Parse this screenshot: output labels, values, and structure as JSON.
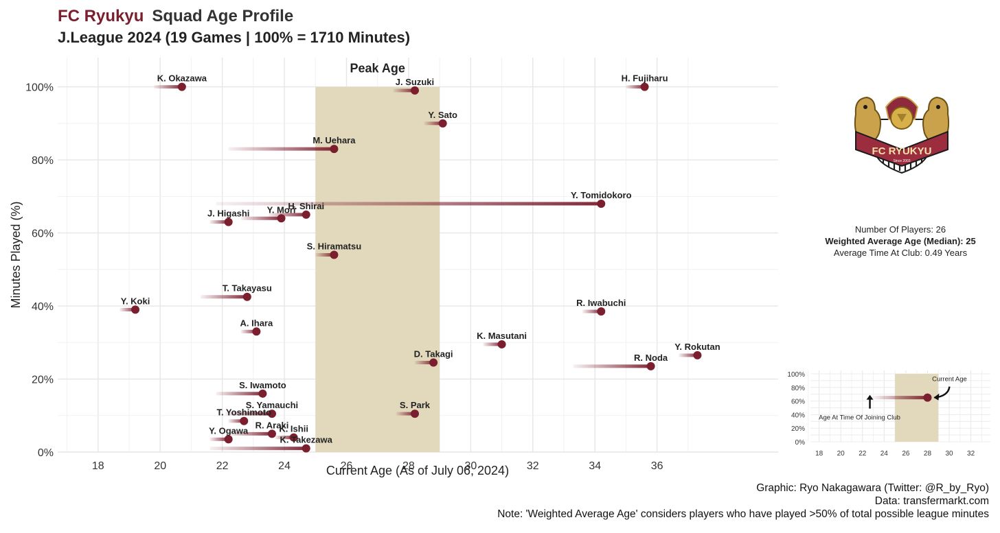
{
  "header": {
    "club": "FC Ryukyu",
    "title_rest": "Squad Age Profile",
    "subtitle": "J.League 2024 (19 Games | 100% = 1710 Minutes)"
  },
  "stats": {
    "players": "Number Of Players: 26",
    "weighted_avg": "Weighted Average Age (Median): 25",
    "avg_time": "Average Time At Club: 0.49 Years"
  },
  "logo_text": {
    "name": "FC RYUKYU",
    "since": "Since 2003"
  },
  "captions": {
    "graphic": "Graphic: Ryo Nakagawara (Twitter: @R_by_Ryo)",
    "data": "Data: transfermarkt.com",
    "note": "Note: 'Weighted Average Age' considers players who have played >50% of total possible league minutes"
  },
  "colors": {
    "accent": "#7b1e2e",
    "peak_band": "#e2d9bc",
    "grid": "#e6e6e6"
  },
  "chart_data": [
    {
      "type": "scatter",
      "title": "",
      "xlabel": "Current Age (As of July 06, 2024)",
      "ylabel": "Minutes Played (%)",
      "xlim": [
        16.7,
        39.9
      ],
      "ylim": [
        0,
        1.08
      ],
      "xticks": [
        18,
        20,
        22,
        24,
        26,
        28,
        30,
        32,
        34,
        36
      ],
      "xtick_labels": [
        "18",
        "20",
        "22",
        "24",
        "26",
        "28",
        "30",
        "32",
        "34",
        "36"
      ],
      "yticks": [
        0,
        0.2,
        0.4,
        0.6,
        0.8,
        1.0
      ],
      "ytick_labels": [
        "0%",
        "20%",
        "40%",
        "60%",
        "80%",
        "100%"
      ],
      "peak_age": {
        "label": "Peak Age",
        "range": [
          25,
          29
        ]
      },
      "players": [
        {
          "name": "K. Okazawa",
          "age": 20.7,
          "minutes": 1.0,
          "joined_age": 19.8
        },
        {
          "name": "J. Suzuki",
          "age": 28.2,
          "minutes": 0.99,
          "joined_age": 27.5
        },
        {
          "name": "H. Fujiharu",
          "age": 35.6,
          "minutes": 1.0,
          "joined_age": 35.0
        },
        {
          "name": "Y. Sato",
          "age": 29.1,
          "minutes": 0.9,
          "joined_age": 28.5
        },
        {
          "name": "M. Uehara",
          "age": 25.6,
          "minutes": 0.83,
          "joined_age": 22.2
        },
        {
          "name": "Y. Tomidokoro",
          "age": 34.2,
          "minutes": 0.68,
          "joined_age": 21.8
        },
        {
          "name": "J. Higashi",
          "age": 22.2,
          "minutes": 0.63,
          "joined_age": 21.6
        },
        {
          "name": "Y. Mori",
          "age": 23.9,
          "minutes": 0.64,
          "joined_age": 22.6
        },
        {
          "name": "H. Shirai",
          "age": 24.7,
          "minutes": 0.65,
          "joined_age": 23.5
        },
        {
          "name": "S. Hiramatsu",
          "age": 25.6,
          "minutes": 0.54,
          "joined_age": 25.0
        },
        {
          "name": "T. Takayasu",
          "age": 22.8,
          "minutes": 0.425,
          "joined_age": 21.3
        },
        {
          "name": "Y. Koki",
          "age": 19.2,
          "minutes": 0.39,
          "joined_age": 18.7
        },
        {
          "name": "R. Iwabuchi",
          "age": 34.2,
          "minutes": 0.385,
          "joined_age": 33.6
        },
        {
          "name": "A. Ihara",
          "age": 23.1,
          "minutes": 0.33,
          "joined_age": 22.6
        },
        {
          "name": "K. Masutani",
          "age": 31.0,
          "minutes": 0.295,
          "joined_age": 30.4
        },
        {
          "name": "Y. Rokutan",
          "age": 37.3,
          "minutes": 0.265,
          "joined_age": 36.7
        },
        {
          "name": "D. Takagi",
          "age": 28.8,
          "minutes": 0.245,
          "joined_age": 28.2
        },
        {
          "name": "R. Noda",
          "age": 35.8,
          "minutes": 0.235,
          "joined_age": 33.3
        },
        {
          "name": "S. Iwamoto",
          "age": 23.3,
          "minutes": 0.16,
          "joined_age": 21.8
        },
        {
          "name": "S. Yamauchi",
          "age": 23.6,
          "minutes": 0.105,
          "joined_age": 22.1
        },
        {
          "name": "S. Park",
          "age": 28.2,
          "minutes": 0.105,
          "joined_age": 27.6
        },
        {
          "name": "T. Yoshimoto",
          "age": 22.7,
          "minutes": 0.085,
          "joined_age": 22.2
        },
        {
          "name": "R. Araki",
          "age": 23.6,
          "minutes": 0.05,
          "joined_age": 22.2
        },
        {
          "name": "K. Ishii",
          "age": 24.3,
          "minutes": 0.04,
          "joined_age": 23.7
        },
        {
          "name": "Y. Ogawa",
          "age": 22.2,
          "minutes": 0.035,
          "joined_age": 21.6
        },
        {
          "name": "K. Takezawa",
          "age": 24.7,
          "minutes": 0.01,
          "joined_age": 21.6
        }
      ]
    },
    {
      "type": "scatter",
      "title": "",
      "xlim": [
        17.2,
        33.8
      ],
      "ylim": [
        0,
        1.05
      ],
      "xticks": [
        18,
        20,
        22,
        24,
        26,
        28,
        30,
        32
      ],
      "xtick_labels": [
        "18",
        "20",
        "22",
        "24",
        "26",
        "28",
        "30",
        "32"
      ],
      "yticks": [
        0,
        0.2,
        0.4,
        0.6,
        0.8,
        1.0
      ],
      "ytick_labels": [
        "0%",
        "20%",
        "40%",
        "60%",
        "80%",
        "100%"
      ],
      "peak_age": {
        "range": [
          25,
          29
        ]
      },
      "example": {
        "joined_age": 23,
        "age": 28,
        "minutes": 0.65
      },
      "annotations": {
        "current": "Current Age",
        "joined": "Age At Time Of Joining Club"
      }
    }
  ]
}
